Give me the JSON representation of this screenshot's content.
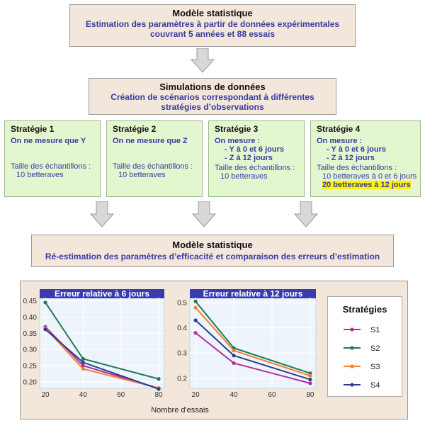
{
  "top_box": {
    "title": "Modèle statistique",
    "line1": "Estimation des paramètres à partir de données expérimentales",
    "line2": "couvrant 5 années et 88 essais"
  },
  "sim_box": {
    "title": "Simulations de données",
    "line1": "Création de scénarios correspondant à différentes",
    "line2": "stratégies d’observations"
  },
  "strategies": [
    {
      "title": "Stratégie 1",
      "lines": [
        "On ne mesure que Y"
      ],
      "size_label": "Taille des échantillons :",
      "size_lines": [
        "10 betteraves"
      ],
      "highlight": ""
    },
    {
      "title": "Stratégie 2",
      "lines": [
        "On ne mesure que Z"
      ],
      "size_label": "Taille des échantillons :",
      "size_lines": [
        "10 betteraves"
      ],
      "highlight": ""
    },
    {
      "title": "Stratégie 3",
      "lines": [
        "On mesure :",
        "- Y à 0 et 6 jours",
        "- Z à 12 jours"
      ],
      "size_label": "Taille des échantillons :",
      "size_lines": [
        "10 betteraves"
      ],
      "highlight": ""
    },
    {
      "title": "Stratégie 4",
      "lines": [
        "On mesure :",
        "- Y à 0 et 6 jours",
        "- Z à 12 jours"
      ],
      "size_label": "Taille des échantillons :",
      "size_lines": [
        "10 betteraves à 0 et 6 jours"
      ],
      "highlight": "20 betteraves à 12 jours"
    }
  ],
  "bottom_box": {
    "title": "Modèle statistique",
    "line1": "Ré-estimation des paramètres d’efficacité et comparaison des erreurs d’estimation"
  },
  "chart_data": [
    {
      "type": "line",
      "title": "Erreur relative à 6 jours",
      "x": [
        20,
        40,
        80
      ],
      "xticks": [
        20,
        40,
        60,
        80
      ],
      "yticks": [
        0.2,
        0.25,
        0.3,
        0.35,
        0.4,
        0.45
      ],
      "ylim": [
        0.18,
        0.46
      ],
      "xlim": [
        17,
        83
      ],
      "series": [
        {
          "name": "S1",
          "color": "#b0309b",
          "values": [
            0.37,
            0.25,
            0.18
          ]
        },
        {
          "name": "S2",
          "color": "#1f7a55",
          "values": [
            0.445,
            0.271,
            0.209
          ]
        },
        {
          "name": "S3",
          "color": "#f08030",
          "values": [
            0.366,
            0.24,
            0.181
          ]
        },
        {
          "name": "S4",
          "color": "#2c3e8e",
          "values": [
            0.362,
            0.26,
            0.178
          ]
        }
      ]
    },
    {
      "type": "line",
      "title": "Erreur relative à 12 jours",
      "x": [
        20,
        40,
        80
      ],
      "xticks": [
        20,
        40,
        60,
        80
      ],
      "yticks": [
        0.2,
        0.3,
        0.4,
        0.5
      ],
      "ylim": [
        0.16,
        0.52
      ],
      "xlim": [
        17,
        83
      ],
      "series": [
        {
          "name": "S1",
          "color": "#b0309b",
          "values": [
            0.38,
            0.26,
            0.18
          ]
        },
        {
          "name": "S2",
          "color": "#1f7a55",
          "values": [
            0.505,
            0.32,
            0.22
          ]
        },
        {
          "name": "S3",
          "color": "#f08030",
          "values": [
            0.48,
            0.31,
            0.21
          ]
        },
        {
          "name": "S4",
          "color": "#2c3e8e",
          "values": [
            0.43,
            0.29,
            0.195
          ]
        }
      ]
    }
  ],
  "xlabel": "Nombre d'essais",
  "legend": {
    "title": "Stratégies",
    "items": [
      "S1",
      "S2",
      "S3",
      "S4"
    ]
  }
}
